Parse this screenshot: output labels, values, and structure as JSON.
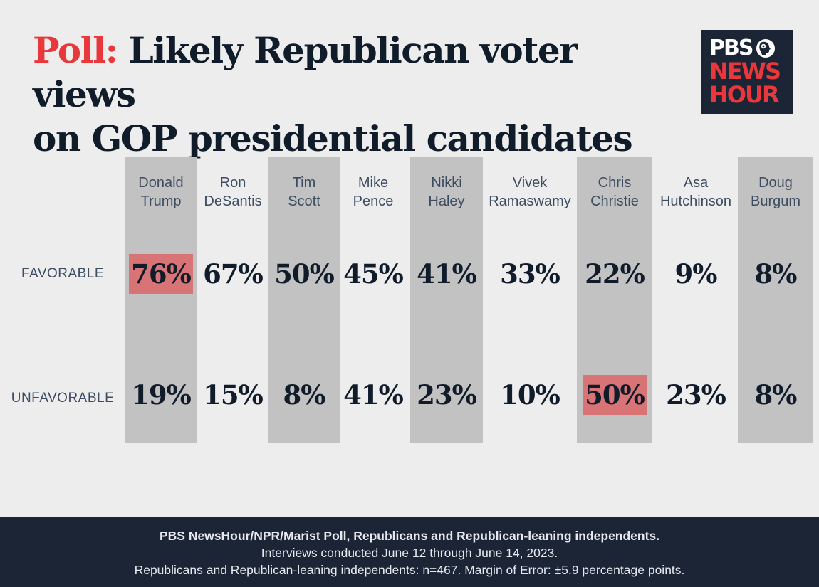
{
  "title": {
    "prefix": "Poll:",
    "line1": "Likely Republican voter views",
    "line2": "on GOP presidential candidates"
  },
  "logo": {
    "line1": "PBS",
    "line2": "NEWS",
    "line3": "HOUR",
    "icon": "pbs-head-icon"
  },
  "colors": {
    "background": "#ededed",
    "column_shade": "#c2c2c2",
    "highlight": "#d87476",
    "accent_red": "#e8383c",
    "footer_bg": "#1b2536"
  },
  "row_labels": {
    "favorable": "FAVORABLE",
    "unfavorable": "UNFAVORABLE"
  },
  "chart_data": {
    "type": "table",
    "columns": [
      {
        "first": "Donald",
        "last": "Trump",
        "favorable": "76%",
        "unfavorable": "19%",
        "shaded": true,
        "highlight": "favorable"
      },
      {
        "first": "Ron",
        "last": "DeSantis",
        "favorable": "67%",
        "unfavorable": "15%",
        "shaded": false,
        "highlight": ""
      },
      {
        "first": "Tim",
        "last": "Scott",
        "favorable": "50%",
        "unfavorable": "8%",
        "shaded": true,
        "highlight": ""
      },
      {
        "first": "Mike",
        "last": "Pence",
        "favorable": "45%",
        "unfavorable": "41%",
        "shaded": false,
        "highlight": ""
      },
      {
        "first": "Nikki",
        "last": "Haley",
        "favorable": "41%",
        "unfavorable": "23%",
        "shaded": true,
        "highlight": ""
      },
      {
        "first": "Vivek",
        "last": "Ramaswamy",
        "favorable": "33%",
        "unfavorable": "10%",
        "shaded": false,
        "highlight": ""
      },
      {
        "first": "Chris",
        "last": "Christie",
        "favorable": "22%",
        "unfavorable": "50%",
        "shaded": true,
        "highlight": "unfavorable"
      },
      {
        "first": "Asa",
        "last": "Hutchinson",
        "favorable": "9%",
        "unfavorable": "23%",
        "shaded": false,
        "highlight": ""
      },
      {
        "first": "Doug",
        "last": "Burgum",
        "favorable": "8%",
        "unfavorable": "8%",
        "shaded": true,
        "highlight": ""
      }
    ]
  },
  "footer": {
    "line1": "PBS NewsHour/NPR/Marist Poll, Republicans and Republican-leaning independents.",
    "line2": "Interviews conducted June 12 through June 14, 2023.",
    "line3": "Republicans and Republican-leaning independents: n=467. Margin of Error: ±5.9 percentage points."
  }
}
